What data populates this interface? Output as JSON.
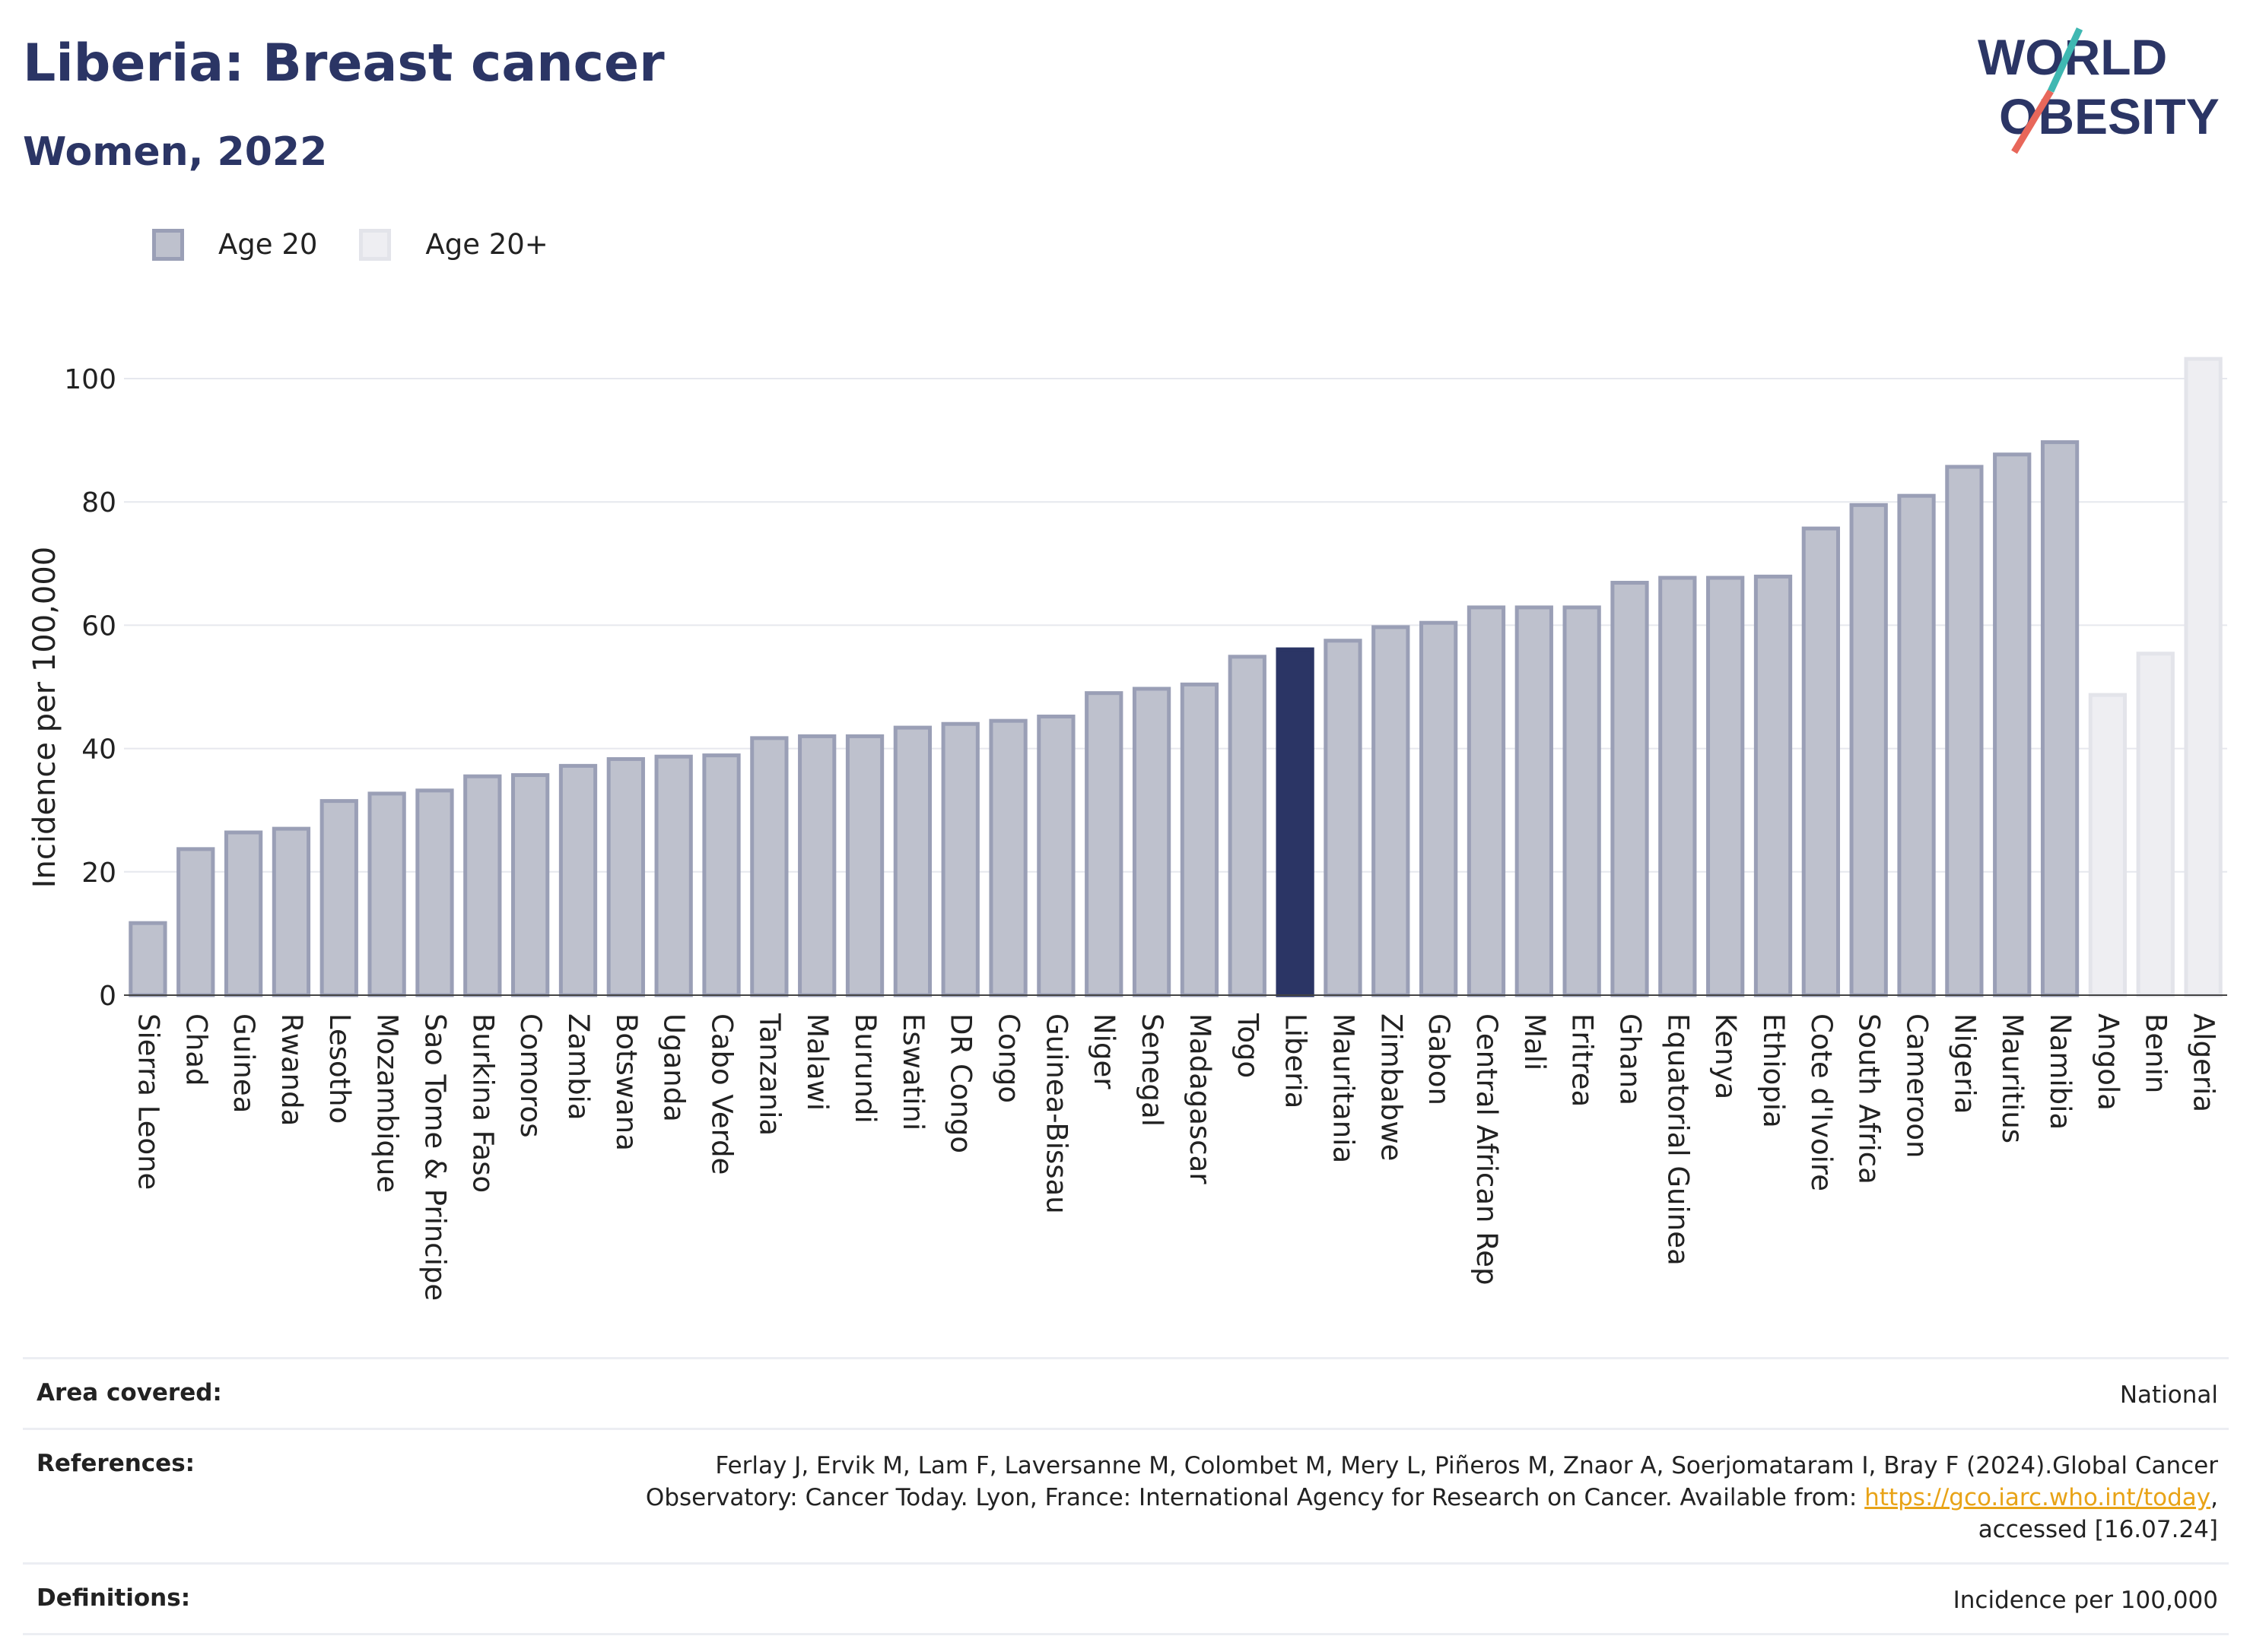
{
  "header": {
    "title": "Liberia: Breast cancer",
    "subtitle": "Women, 2022"
  },
  "logo": {
    "line1": "WORLD",
    "line2": "OBESITY"
  },
  "legend": [
    {
      "label": "Age 20",
      "color": "#bec1cd"
    },
    {
      "label": "Age 20+",
      "color": "#eeeef2"
    }
  ],
  "colors": {
    "highlight": "#2b3565",
    "age20_fill": "#bec1cd",
    "age20_edge": "#9a9fb6",
    "age20plus_fill": "#eeeef2",
    "age20plus_edge": "#e3e4ea"
  },
  "chart_data": {
    "type": "bar",
    "ylabel": "Incidence per 100,000",
    "ylim": [
      0,
      105
    ],
    "yticks": [
      0,
      20,
      40,
      60,
      80,
      100
    ],
    "grid": true,
    "highlight": "Liberia",
    "categories": [
      "Sierra Leone",
      "Chad",
      "Guinea",
      "Rwanda",
      "Lesotho",
      "Mozambique",
      "Sao Tome & Principe",
      "Burkina Faso",
      "Comoros",
      "Zambia",
      "Botswana",
      "Uganda",
      "Cabo Verde",
      "Tanzania",
      "Malawi",
      "Burundi",
      "Eswatini",
      "DR Congo",
      "Congo",
      "Guinea-Bissau",
      "Niger",
      "Senegal",
      "Madagascar",
      "Togo",
      "Liberia",
      "Mauritania",
      "Zimbabwe",
      "Gabon",
      "Central African Rep",
      "Mali",
      "Eritrea",
      "Ghana",
      "Equatorial Guinea",
      "Kenya",
      "Ethiopia",
      "Cote d'Ivoire",
      "South Africa",
      "Cameroon",
      "Nigeria",
      "Mauritius",
      "Namibia",
      "Angola",
      "Benin",
      "Algeria"
    ],
    "values": [
      12,
      24,
      26.7,
      27.3,
      31.8,
      33,
      33.5,
      35.8,
      36,
      37.5,
      38.6,
      39,
      39.2,
      42,
      42.3,
      42.3,
      43.7,
      44.3,
      44.8,
      45.5,
      49.3,
      50,
      50.7,
      55.2,
      56.4,
      57.8,
      60,
      60.7,
      63.2,
      63.2,
      63.2,
      67.2,
      68,
      68,
      68.2,
      76,
      79.8,
      81.3,
      86,
      88,
      90,
      49,
      55.7,
      103.5
    ],
    "groups": [
      "Age 20",
      "Age 20",
      "Age 20",
      "Age 20",
      "Age 20",
      "Age 20",
      "Age 20",
      "Age 20",
      "Age 20",
      "Age 20",
      "Age 20",
      "Age 20",
      "Age 20",
      "Age 20",
      "Age 20",
      "Age 20",
      "Age 20",
      "Age 20",
      "Age 20",
      "Age 20",
      "Age 20",
      "Age 20",
      "Age 20",
      "Age 20",
      "Age 20",
      "Age 20",
      "Age 20",
      "Age 20",
      "Age 20",
      "Age 20",
      "Age 20",
      "Age 20",
      "Age 20",
      "Age 20",
      "Age 20",
      "Age 20",
      "Age 20",
      "Age 20",
      "Age 20",
      "Age 20",
      "Age 20",
      "Age 20+",
      "Age 20+",
      "Age 20+"
    ]
  },
  "footer": {
    "area_label": "Area covered:",
    "area_value": "National",
    "ref_label": "References:",
    "ref_line1": "Ferlay J, Ervik M, Lam F, Laversanne M, Colombet M, Mery L, Piñeros M, Znaor A, Soerjomataram I, Bray F (2024).Global Cancer",
    "ref_line2_pre": "Observatory: Cancer Today. Lyon, France: International Agency for Research on Cancer. Available from: ",
    "ref_link": "https://gco.iarc.who.int/today",
    "ref_line2_post": ",",
    "ref_line3": "accessed [16.07.24]",
    "def_label": "Definitions:",
    "def_value": "Incidence per 100,000"
  }
}
